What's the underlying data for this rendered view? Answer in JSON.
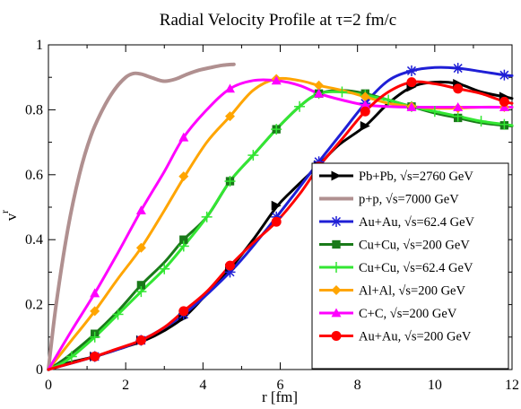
{
  "chart_data": {
    "type": "line",
    "title": "Radial Velocity Profile at τ=2 fm/c",
    "xlabel": "r [fm]",
    "ylabel_main": "v",
    "ylabel_sup": "r",
    "xlim": [
      0,
      12
    ],
    "ylim": [
      0,
      1
    ],
    "xticks": [
      "0",
      "2",
      "4",
      "6",
      "8",
      "10",
      "12"
    ],
    "yticks": [
      "0",
      "0.2",
      "0.4",
      "0.6",
      "0.8",
      "1"
    ],
    "grid": false,
    "legend_position": "bottom-right",
    "series": [
      {
        "name": "Pb+Pb,  √s=2760 GeV",
        "color": "#000000",
        "marker": "triangle-right",
        "x": [
          0,
          0.5,
          1.2,
          2.0,
          2.5,
          3.0,
          3.5,
          4.0,
          4.7,
          5.3,
          5.9,
          6.3,
          7.0,
          7.5,
          8.2,
          8.8,
          9.4,
          10.0,
          10.6,
          11.2,
          11.8,
          12.0
        ],
        "y": [
          0,
          0.02,
          0.04,
          0.07,
          0.09,
          0.12,
          0.16,
          0.22,
          0.31,
          0.4,
          0.5,
          0.55,
          0.63,
          0.69,
          0.75,
          0.82,
          0.87,
          0.885,
          0.88,
          0.855,
          0.84,
          0.835
        ],
        "marker_x": [
          1.2,
          2.4,
          3.5,
          4.7,
          5.9,
          7.0,
          8.2,
          9.4,
          10.6,
          11.8
        ],
        "marker_y": [
          0.04,
          0.09,
          0.16,
          0.31,
          0.505,
          0.63,
          0.75,
          0.87,
          0.88,
          0.84
        ]
      },
      {
        "name": "p+p,  √s=7000 GeV",
        "color": "#b09090",
        "marker": "none",
        "x": [
          0,
          0.2,
          0.5,
          0.8,
          1.1,
          1.4,
          1.7,
          2.0,
          2.2,
          2.4,
          2.7,
          3.0,
          3.3,
          3.6,
          3.9,
          4.2,
          4.5,
          4.8
        ],
        "y": [
          0,
          0.2,
          0.43,
          0.6,
          0.72,
          0.8,
          0.86,
          0.9,
          0.912,
          0.91,
          0.898,
          0.888,
          0.895,
          0.91,
          0.922,
          0.93,
          0.937,
          0.94
        ]
      },
      {
        "name": "Au+Au,  √s=62.4 GeV",
        "color": "#1f1fd6",
        "marker": "asterisk",
        "x": [
          0,
          1.2,
          2.4,
          3.5,
          4.7,
          5.5,
          6.3,
          7.0,
          7.6,
          8.2,
          8.8,
          9.4,
          10.0,
          10.6,
          11.2,
          11.8,
          12.0
        ],
        "y": [
          0,
          0.04,
          0.09,
          0.17,
          0.3,
          0.41,
          0.53,
          0.64,
          0.73,
          0.82,
          0.89,
          0.92,
          0.93,
          0.928,
          0.918,
          0.907,
          0.905
        ],
        "marker_x": [
          1.2,
          2.4,
          3.5,
          4.7,
          5.9,
          7.0,
          8.2,
          9.4,
          10.6,
          11.8
        ],
        "marker_y": [
          0.04,
          0.09,
          0.17,
          0.3,
          0.47,
          0.64,
          0.82,
          0.92,
          0.928,
          0.907
        ]
      },
      {
        "name": "Cu+Cu,  √s=200 GeV",
        "color": "#1a7a1a",
        "marker": "square",
        "x": [
          0,
          0.5,
          1.2,
          1.8,
          2.4,
          3.0,
          3.5,
          4.1,
          4.7,
          5.3,
          5.9,
          6.5,
          7.0,
          7.6,
          8.2,
          8.8,
          9.4,
          10.0,
          10.6,
          11.2,
          11.8,
          12.0
        ],
        "y": [
          0,
          0.04,
          0.11,
          0.18,
          0.26,
          0.33,
          0.4,
          0.47,
          0.58,
          0.66,
          0.74,
          0.81,
          0.85,
          0.86,
          0.85,
          0.83,
          0.81,
          0.79,
          0.775,
          0.76,
          0.752,
          0.75
        ],
        "marker_x": [
          1.2,
          2.4,
          3.5,
          4.7,
          5.9,
          7.0,
          8.2,
          9.4,
          10.6,
          11.8
        ],
        "marker_y": [
          0.11,
          0.26,
          0.4,
          0.58,
          0.74,
          0.85,
          0.85,
          0.81,
          0.775,
          0.752
        ]
      },
      {
        "name": "Cu+Cu,  √s=62.4 GeV",
        "color": "#33e633",
        "marker": "plus",
        "x": [
          0,
          0.5,
          1.2,
          1.8,
          2.4,
          3.0,
          3.5,
          4.1,
          4.7,
          5.3,
          5.9,
          6.5,
          7.0,
          7.6,
          8.2,
          8.8,
          9.4,
          10.0,
          10.6,
          11.2,
          11.8,
          12.0
        ],
        "y": [
          0,
          0.03,
          0.1,
          0.17,
          0.24,
          0.31,
          0.38,
          0.47,
          0.58,
          0.66,
          0.74,
          0.81,
          0.85,
          0.855,
          0.845,
          0.83,
          0.81,
          0.795,
          0.78,
          0.765,
          0.755,
          0.752
        ],
        "marker_x": [
          0.6,
          1.2,
          1.8,
          2.4,
          3.0,
          3.5,
          4.1,
          4.7,
          5.3,
          5.9,
          6.5,
          7.0,
          7.6,
          8.2,
          8.8,
          9.4,
          10.0,
          10.6,
          11.2,
          11.8
        ],
        "marker_y": [
          0.04,
          0.1,
          0.17,
          0.24,
          0.31,
          0.38,
          0.47,
          0.58,
          0.66,
          0.74,
          0.81,
          0.85,
          0.855,
          0.845,
          0.83,
          0.81,
          0.795,
          0.78,
          0.765,
          0.755
        ]
      },
      {
        "name": "Al+Al,  √s=200 GeV",
        "color": "#ffa500",
        "marker": "diamond",
        "x": [
          0,
          0.6,
          1.2,
          1.8,
          2.4,
          3.0,
          3.5,
          4.1,
          4.7,
          5.3,
          5.9,
          6.5,
          7.0,
          7.6,
          8.2,
          8.8,
          9.4,
          10.0,
          10.6,
          11.2,
          11.8,
          12.0
        ],
        "y": [
          0,
          0.09,
          0.18,
          0.28,
          0.375,
          0.49,
          0.59,
          0.7,
          0.78,
          0.86,
          0.895,
          0.89,
          0.875,
          0.86,
          0.84,
          0.82,
          0.81,
          0.805,
          0.805,
          0.808,
          0.808,
          0.808
        ],
        "marker_x": [
          1.2,
          2.4,
          3.5,
          4.7,
          5.9,
          7.0,
          8.2,
          9.4,
          10.6,
          11.8
        ],
        "marker_y": [
          0.18,
          0.375,
          0.595,
          0.78,
          0.895,
          0.875,
          0.84,
          0.81,
          0.805,
          0.808
        ]
      },
      {
        "name": "C+C,  √s=200 GeV",
        "color": "#ff00ff",
        "marker": "triangle-up",
        "x": [
          0,
          0.6,
          1.2,
          1.8,
          2.4,
          3.0,
          3.5,
          4.1,
          4.7,
          5.3,
          5.9,
          6.5,
          7.0,
          7.6,
          8.2,
          8.8,
          9.4,
          10.0,
          10.6,
          11.2,
          11.8,
          12.0
        ],
        "y": [
          0,
          0.12,
          0.235,
          0.36,
          0.49,
          0.61,
          0.715,
          0.8,
          0.865,
          0.89,
          0.89,
          0.875,
          0.85,
          0.83,
          0.815,
          0.81,
          0.808,
          0.808,
          0.808,
          0.808,
          0.808,
          0.808
        ],
        "marker_x": [
          1.2,
          2.4,
          3.5,
          4.7,
          5.9,
          7.0,
          8.2,
          9.4,
          10.6,
          11.8
        ],
        "marker_y": [
          0.235,
          0.49,
          0.715,
          0.865,
          0.89,
          0.85,
          0.815,
          0.808,
          0.808,
          0.808
        ]
      },
      {
        "name": "Au+Au,  √s=200 GeV",
        "color": "#ff0000",
        "marker": "circle",
        "x": [
          0,
          0.6,
          1.2,
          1.8,
          2.4,
          3.0,
          3.5,
          4.1,
          4.7,
          5.3,
          5.9,
          6.5,
          7.0,
          7.6,
          8.2,
          8.8,
          9.4,
          10.0,
          10.6,
          11.2,
          11.8,
          12.0
        ],
        "y": [
          0,
          0.02,
          0.04,
          0.065,
          0.09,
          0.13,
          0.18,
          0.24,
          0.32,
          0.39,
          0.455,
          0.54,
          0.625,
          0.71,
          0.795,
          0.855,
          0.885,
          0.88,
          0.865,
          0.85,
          0.825,
          0.82
        ],
        "marker_x": [
          1.2,
          2.4,
          3.5,
          4.7,
          5.9,
          7.0,
          8.2,
          9.4,
          10.6,
          11.8
        ],
        "marker_y": [
          0.04,
          0.09,
          0.18,
          0.32,
          0.455,
          0.625,
          0.795,
          0.885,
          0.865,
          0.825
        ]
      }
    ]
  }
}
